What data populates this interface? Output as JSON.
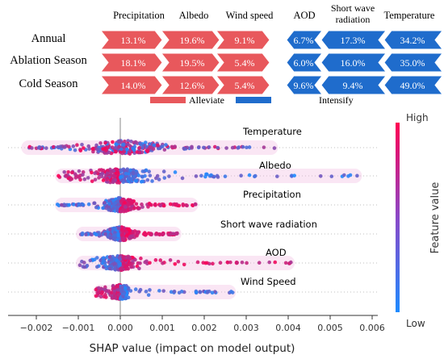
{
  "chart_data": [
    {
      "type": "table",
      "alleviate_header": [
        "Precipitation",
        "Albedo",
        "Wind speed"
      ],
      "intensify_header": [
        "AOD",
        "Short wave radiation",
        "Temperature"
      ],
      "rows": [
        {
          "label": "Annual",
          "alleviate": [
            "13.1%",
            "19.6%",
            "9.1%"
          ],
          "intensify": [
            "6.7%",
            "17.3%",
            "34.2%"
          ]
        },
        {
          "label": "Ablation Season",
          "alleviate": [
            "18.1%",
            "19.5%",
            "5.4%"
          ],
          "intensify": [
            "6.0%",
            "16.0%",
            "35.0%"
          ]
        },
        {
          "label": "Cold Season",
          "alleviate": [
            "14.0%",
            "12.6%",
            "5.4%"
          ],
          "intensify": [
            "9.6%",
            "9.4%",
            "49.0%"
          ]
        }
      ],
      "legend": [
        {
          "label": "Alleviate",
          "color": "#e8585c"
        },
        {
          "label": "Intensify",
          "color": "#1f6ccc"
        }
      ],
      "colors": {
        "alleviate": "#e8585c",
        "intensify": "#1f6ccc"
      }
    },
    {
      "type": "scatter",
      "xlabel": "SHAP value (impact on model output)",
      "xticks": [
        "−0.002",
        "−0.001",
        "0.000",
        "0.001",
        "0.002",
        "0.003",
        "0.004",
        "0.005",
        "0.006"
      ],
      "xlim": [
        -0.0025,
        0.0061
      ],
      "features": [
        {
          "name": "Temperature",
          "min": -0.0023,
          "max": 0.0037,
          "core": [
            -0.0004,
            0.0006
          ],
          "skew": "both"
        },
        {
          "name": "Albedo",
          "min": -0.0015,
          "max": 0.0057,
          "core": [
            -0.0003,
            0.0003
          ],
          "skew": "right-low"
        },
        {
          "name": "Precipitation",
          "min": -0.0015,
          "max": 0.0018,
          "core": [
            -0.0002,
            0.0002
          ],
          "skew": "right-high"
        },
        {
          "name": "Short wave radiation",
          "min": -0.001,
          "max": 0.0014,
          "core": [
            -0.0002,
            0.0002
          ],
          "skew": "right-high"
        },
        {
          "name": "AOD",
          "min": -0.001,
          "max": 0.0041,
          "core": [
            -0.0002,
            0.0002
          ],
          "skew": "right-high"
        },
        {
          "name": "Wind Speed",
          "min": -0.0006,
          "max": 0.0027,
          "core": [
            -0.0001,
            0.0001
          ],
          "skew": "right-low"
        }
      ],
      "colorbar": {
        "label": "Feature value",
        "high": "High",
        "low": "Low",
        "colors": [
          "#1e8bff",
          "#ff0052"
        ]
      }
    }
  ]
}
